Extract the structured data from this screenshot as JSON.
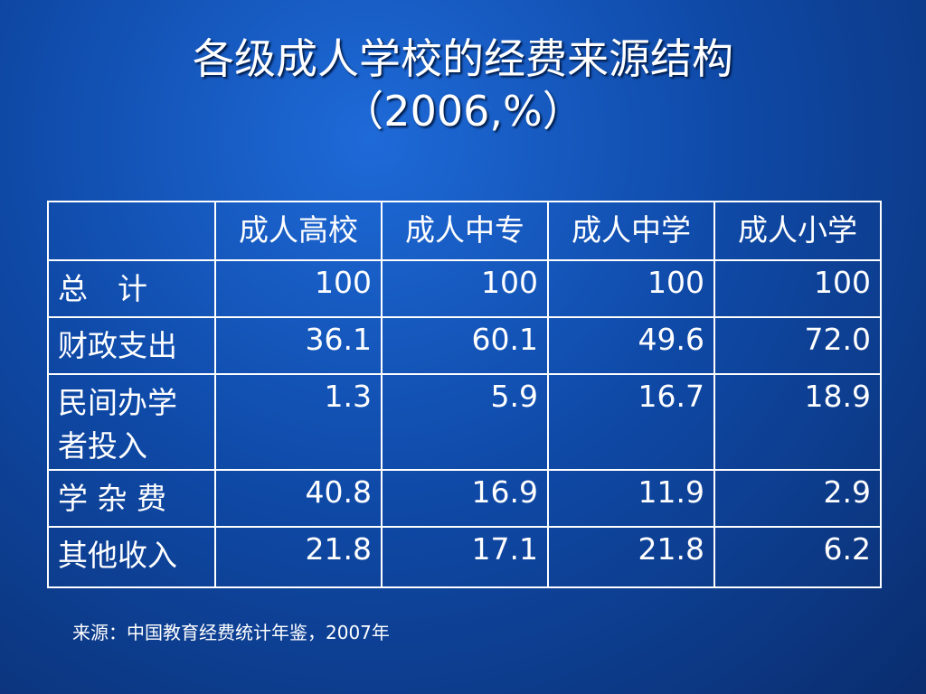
{
  "title": [
    "各级成人学校的经费来源结构",
    "（2006,%）"
  ],
  "table": {
    "header": [
      "成人高校",
      "成人中专",
      "成人中学",
      "成人小学"
    ],
    "rows": [
      {
        "label": "总　计",
        "values": [
          "100",
          "100",
          "100",
          "100"
        ]
      },
      {
        "label": "财政支出",
        "values": [
          "36.1",
          "60.1",
          "49.6",
          "72.0"
        ]
      },
      {
        "label": "民间办学者投入",
        "values": [
          "1.3",
          "5.9",
          "16.7",
          "18.9"
        ]
      },
      {
        "label": "学 杂 费",
        "values": [
          "40.8",
          "16.9",
          "11.9",
          "2.9"
        ]
      },
      {
        "label": "其他收入",
        "values": [
          "21.8",
          "17.1",
          "21.8",
          "6.2"
        ]
      }
    ]
  },
  "source": "来源：中国教育经费统计年鉴，2007年"
}
